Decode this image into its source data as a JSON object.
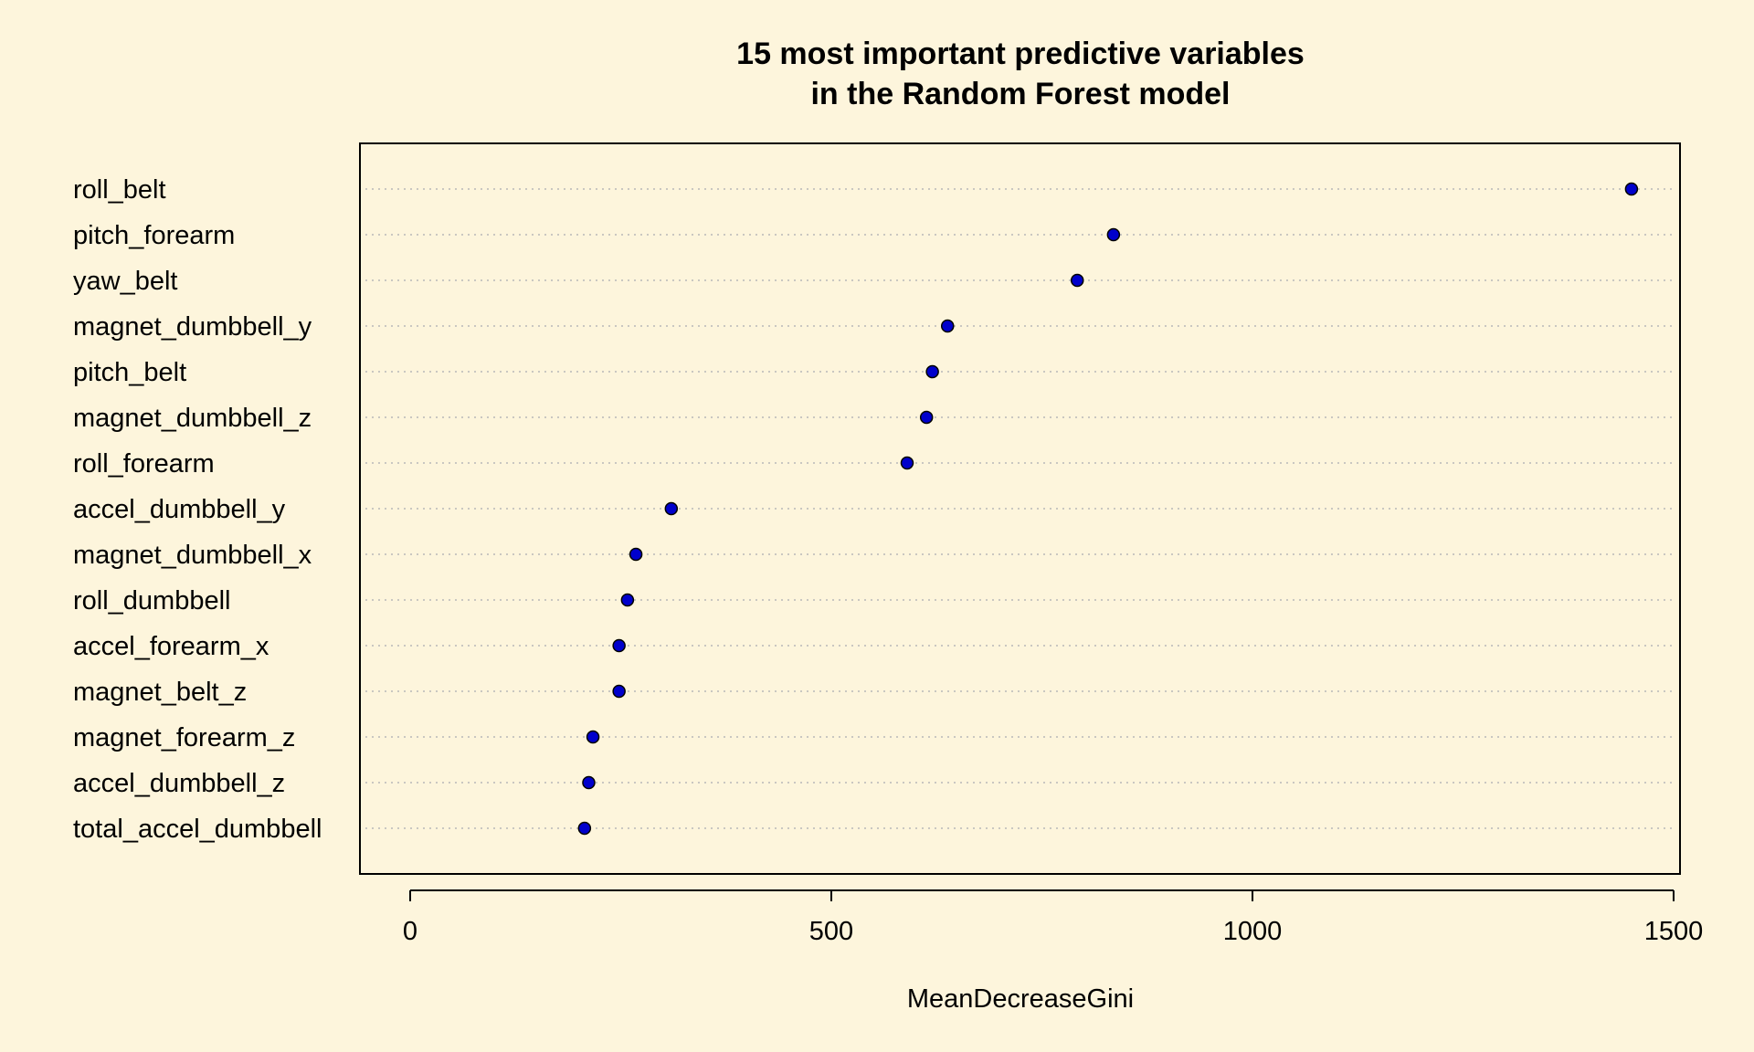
{
  "chart_data": {
    "type": "scatter",
    "title_lines": [
      "15 most important predictive variables",
      "in the Random Forest model"
    ],
    "xlabel": "MeanDecreaseGini",
    "ylabel": "",
    "xlim": [
      -60,
      1505
    ],
    "xticks": [
      0,
      500,
      1000,
      1500
    ],
    "grid": "dotted horizontal guide lines",
    "point_color": "#0000cc",
    "background": "#fdf5dc",
    "categories": [
      "roll_belt",
      "pitch_forearm",
      "yaw_belt",
      "magnet_dumbbell_y",
      "pitch_belt",
      "magnet_dumbbell_z",
      "roll_forearm",
      "accel_dumbbell_y",
      "magnet_dumbbell_x",
      "roll_dumbbell",
      "accel_forearm_x",
      "magnet_belt_z",
      "magnet_forearm_z",
      "accel_dumbbell_z",
      "total_accel_dumbbell"
    ],
    "values": [
      1450,
      835,
      792,
      638,
      620,
      613,
      590,
      310,
      268,
      258,
      248,
      248,
      217,
      212,
      207
    ]
  }
}
